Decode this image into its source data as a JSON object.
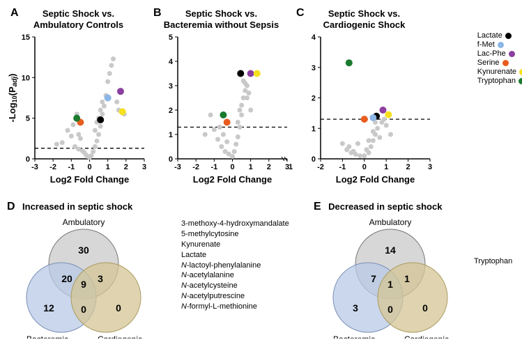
{
  "legend": {
    "items": [
      {
        "label": "Lactate",
        "color": "#000000"
      },
      {
        "label": "f-Met",
        "color": "#8bb6e6"
      },
      {
        "label": "Lac-Phe",
        "color": "#8b3fa0"
      },
      {
        "label": "Serine",
        "color": "#e85d1f"
      },
      {
        "label": "Kynurenate",
        "color": "#f7e01e"
      },
      {
        "label": "Tryptophan",
        "color": "#1a7a2e"
      }
    ]
  },
  "colors": {
    "gray_point": "#c9c9c9",
    "venn_gray": "#c9c9c9",
    "venn_blue": "#b8c9e6",
    "venn_tan": "#d4c694",
    "background": "#ffffff"
  },
  "panels": {
    "A": {
      "label": "A",
      "title": "Septic Shock vs.\nAmbulatory Controls",
      "xlabel": "Log2 Fold Change",
      "ylabel": "-Log₁₀(P_adj)",
      "xlim": [
        -3,
        3
      ],
      "ylim": [
        0,
        15
      ],
      "xticks": [
        -3,
        -2,
        -1,
        0,
        1,
        2,
        3
      ],
      "yticks": [
        0,
        5,
        10,
        15
      ],
      "dashed_y": 1.3,
      "gray_points": [
        [
          -1.2,
          3.5
        ],
        [
          -1.0,
          2.8
        ],
        [
          -0.9,
          4.2
        ],
        [
          -0.7,
          5.5
        ],
        [
          -0.6,
          3.0
        ],
        [
          -0.5,
          2.5
        ],
        [
          -0.4,
          1.0
        ],
        [
          -0.3,
          0.8
        ],
        [
          -0.2,
          0.5
        ],
        [
          -0.1,
          0.3
        ],
        [
          0,
          0.2
        ],
        [
          0.1,
          0.4
        ],
        [
          0.2,
          0.9
        ],
        [
          0.3,
          1.5
        ],
        [
          0.4,
          2.2
        ],
        [
          0.5,
          3.0
        ],
        [
          0.6,
          4.0
        ],
        [
          0.7,
          5.5
        ],
        [
          0.8,
          6.5
        ],
        [
          0.9,
          7.8
        ],
        [
          1.0,
          9.5
        ],
        [
          1.1,
          10.5
        ],
        [
          1.2,
          11.5
        ],
        [
          1.3,
          12.3
        ],
        [
          1.5,
          7.0
        ],
        [
          1.6,
          6.0
        ],
        [
          1.9,
          5.5
        ],
        [
          -1.5,
          2.0
        ],
        [
          -1.8,
          1.8
        ],
        [
          0.3,
          3.5
        ],
        [
          0.5,
          5.0
        ],
        [
          0.7,
          7.0
        ],
        [
          0.4,
          4.5
        ],
        [
          0.6,
          6.0
        ],
        [
          -0.8,
          1.5
        ],
        [
          -0.6,
          1.2
        ]
      ],
      "colored_points": [
        {
          "x": 0.6,
          "y": 4.8,
          "color": "#000000"
        },
        {
          "x": 1.0,
          "y": 7.5,
          "color": "#8bb6e6"
        },
        {
          "x": 1.7,
          "y": 8.3,
          "color": "#8b3fa0"
        },
        {
          "x": -0.5,
          "y": 4.5,
          "color": "#e85d1f"
        },
        {
          "x": 1.8,
          "y": 5.8,
          "color": "#f7e01e"
        },
        {
          "x": -0.7,
          "y": 5.0,
          "color": "#1a7a2e"
        }
      ]
    },
    "B": {
      "label": "B",
      "title": "Septic Shock vs.\nBacteremia without Sepsis",
      "xlabel": "Log2 Fold Change",
      "ylabel": "",
      "xlim": [
        -3,
        3
      ],
      "ylim": [
        0,
        5
      ],
      "xticks": [
        -3,
        -2,
        -1,
        0,
        1,
        2,
        3
      ],
      "yticks": [
        0,
        1,
        2,
        3,
        4,
        5
      ],
      "dashed_y": 1.3,
      "break_x": 10,
      "gray_points": [
        [
          -1.2,
          1.8
        ],
        [
          -1.0,
          1.2
        ],
        [
          -0.8,
          0.8
        ],
        [
          -0.6,
          0.5
        ],
        [
          -0.4,
          0.3
        ],
        [
          -0.2,
          0.2
        ],
        [
          0,
          0.1
        ],
        [
          0.1,
          0.3
        ],
        [
          0.2,
          0.6
        ],
        [
          0.3,
          0.9
        ],
        [
          0.4,
          1.3
        ],
        [
          0.5,
          1.8
        ],
        [
          0.6,
          2.5
        ],
        [
          0.7,
          2.8
        ],
        [
          0.8,
          3.0
        ],
        [
          0.9,
          2.7
        ],
        [
          1.0,
          2.0
        ],
        [
          -0.5,
          1.0
        ],
        [
          -0.3,
          0.7
        ],
        [
          0.5,
          2.2
        ],
        [
          0.6,
          3.2
        ],
        [
          0.7,
          3.1
        ],
        [
          0.4,
          2.0
        ],
        [
          0.3,
          1.5
        ],
        [
          -0.7,
          1.3
        ],
        [
          0.8,
          2.5
        ],
        [
          -1.5,
          1.0
        ]
      ],
      "colored_points": [
        {
          "x": 0.45,
          "y": 3.5,
          "color": "#000000"
        },
        {
          "x": 1.0,
          "y": 3.5,
          "color": "#8b3fa0"
        },
        {
          "x": -0.3,
          "y": 1.5,
          "color": "#e85d1f"
        },
        {
          "x": 1.35,
          "y": 3.5,
          "color": "#f7e01e"
        },
        {
          "x": -0.5,
          "y": 1.8,
          "color": "#1a7a2e"
        }
      ]
    },
    "C": {
      "label": "C",
      "title": "Septic Shock vs.\nCardiogenic Shock",
      "xlabel": "Log2 Fold Change",
      "ylabel": "",
      "xlim": [
        -2,
        3
      ],
      "ylim": [
        0,
        4
      ],
      "xticks": [
        -2,
        -1,
        0,
        1,
        2,
        3
      ],
      "yticks": [
        0,
        1,
        2,
        3,
        4
      ],
      "dashed_y": 1.3,
      "gray_points": [
        [
          -1.0,
          0.5
        ],
        [
          -0.8,
          0.3
        ],
        [
          -0.6,
          0.2
        ],
        [
          -0.4,
          0.15
        ],
        [
          -0.2,
          0.1
        ],
        [
          0,
          0.1
        ],
        [
          0.2,
          0.2
        ],
        [
          0.3,
          0.4
        ],
        [
          0.4,
          0.6
        ],
        [
          0.5,
          0.8
        ],
        [
          0.6,
          1.0
        ],
        [
          0.7,
          0.7
        ],
        [
          0.8,
          1.2
        ],
        [
          0.9,
          1.3
        ],
        [
          1.0,
          1.1
        ],
        [
          -0.5,
          0.25
        ],
        [
          -0.3,
          0.5
        ],
        [
          0.4,
          0.9
        ],
        [
          0.5,
          1.2
        ],
        [
          0.6,
          1.4
        ],
        [
          0.2,
          0.6
        ],
        [
          -0.7,
          0.4
        ],
        [
          1.2,
          0.8
        ],
        [
          0.1,
          0.3
        ]
      ],
      "colored_points": [
        {
          "x": 0.55,
          "y": 1.4,
          "color": "#000000"
        },
        {
          "x": 0.4,
          "y": 1.35,
          "color": "#8bb6e6"
        },
        {
          "x": 0.85,
          "y": 1.6,
          "color": "#8b3fa0"
        },
        {
          "x": 0.0,
          "y": 1.3,
          "color": "#e85d1f"
        },
        {
          "x": 1.1,
          "y": 1.45,
          "color": "#f7e01e"
        },
        {
          "x": -0.7,
          "y": 3.15,
          "color": "#1a7a2e"
        }
      ]
    }
  },
  "venn": {
    "D": {
      "label": "D",
      "title": "Increased in septic shock",
      "circles": {
        "ambulatory": {
          "label": "Ambulatory",
          "only": "30"
        },
        "bacteremic": {
          "label": "Bacteremic",
          "only": "12"
        },
        "cardiogenic": {
          "label": "Cardiogenic",
          "only": "0"
        }
      },
      "overlaps": {
        "ab": "20",
        "ac": "3",
        "bc": "0",
        "abc": "9"
      },
      "list": [
        "3-methoxy-4-hydroxymandalate",
        "5-methylcytosine",
        "Kynurenate",
        "Lactate",
        "N-lactoyl-phenylalanine",
        "N-acetylalanine",
        "N-acetylcysteine",
        "N-acetylputrescine",
        "N-formyl-L-methionine"
      ]
    },
    "E": {
      "label": "E",
      "title": "Decreased in septic shock",
      "circles": {
        "ambulatory": {
          "label": "Ambulatory",
          "only": "14"
        },
        "bacteremic": {
          "label": "Bacteremic",
          "only": "3"
        },
        "cardiogenic": {
          "label": "Cardiogenic",
          "only": "0"
        }
      },
      "overlaps": {
        "ab": "7",
        "ac": "1",
        "bc": "0",
        "abc": "1"
      },
      "list": [
        "Tryptophan"
      ]
    }
  }
}
